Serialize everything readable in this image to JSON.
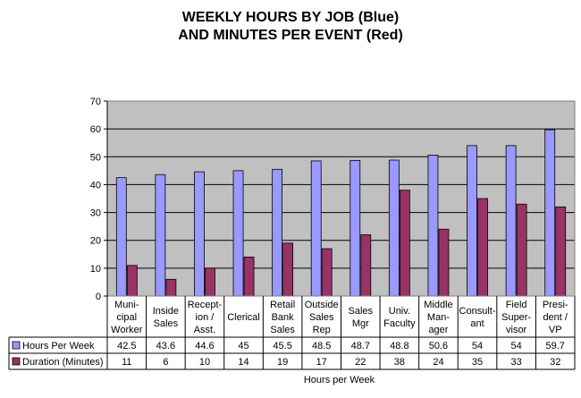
{
  "title": {
    "line1": "WEEKLY HOURS BY JOB (Blue)",
    "line2": "AND MINUTES PER EVENT (Red)"
  },
  "colors": {
    "plot_bg": "#C0C0C0",
    "hours": "#9999FF",
    "duration": "#993366"
  },
  "chart_data": {
    "type": "bar",
    "title": "WEEKLY HOURS BY JOB (Blue) AND MINUTES PER EVENT (Red)",
    "xlabel": "Hours per Week",
    "ylabel": "",
    "ylim": [
      0,
      70
    ],
    "yticks": [
      0,
      10,
      20,
      30,
      40,
      50,
      60,
      70
    ],
    "grid": true,
    "legend": "data-table",
    "categories": [
      [
        "Muni-",
        "cipal",
        "Worker"
      ],
      [
        "Inside",
        "Sales"
      ],
      [
        "Recept-",
        "ion /",
        "Asst."
      ],
      [
        "Clerical"
      ],
      [
        "Retail",
        "Bank",
        "Sales"
      ],
      [
        "Outside",
        "Sales",
        "Rep"
      ],
      [
        "Sales",
        "Mgr"
      ],
      [
        "Univ.",
        "Faculty"
      ],
      [
        "Middle",
        "Man-",
        "ager"
      ],
      [
        "Consult-",
        "ant"
      ],
      [
        "Field",
        "Super-",
        "visor"
      ],
      [
        "Presi-",
        "dent /",
        "VP"
      ]
    ],
    "series": [
      {
        "name": "Hours Per Week",
        "values": [
          42.5,
          43.6,
          44.6,
          45,
          45.5,
          48.5,
          48.7,
          48.8,
          50.6,
          54,
          54,
          59.7
        ]
      },
      {
        "name": "Duration (Minutes)",
        "values": [
          11,
          6,
          10,
          14,
          19,
          17,
          22,
          38,
          24,
          35,
          33,
          32
        ]
      }
    ]
  }
}
